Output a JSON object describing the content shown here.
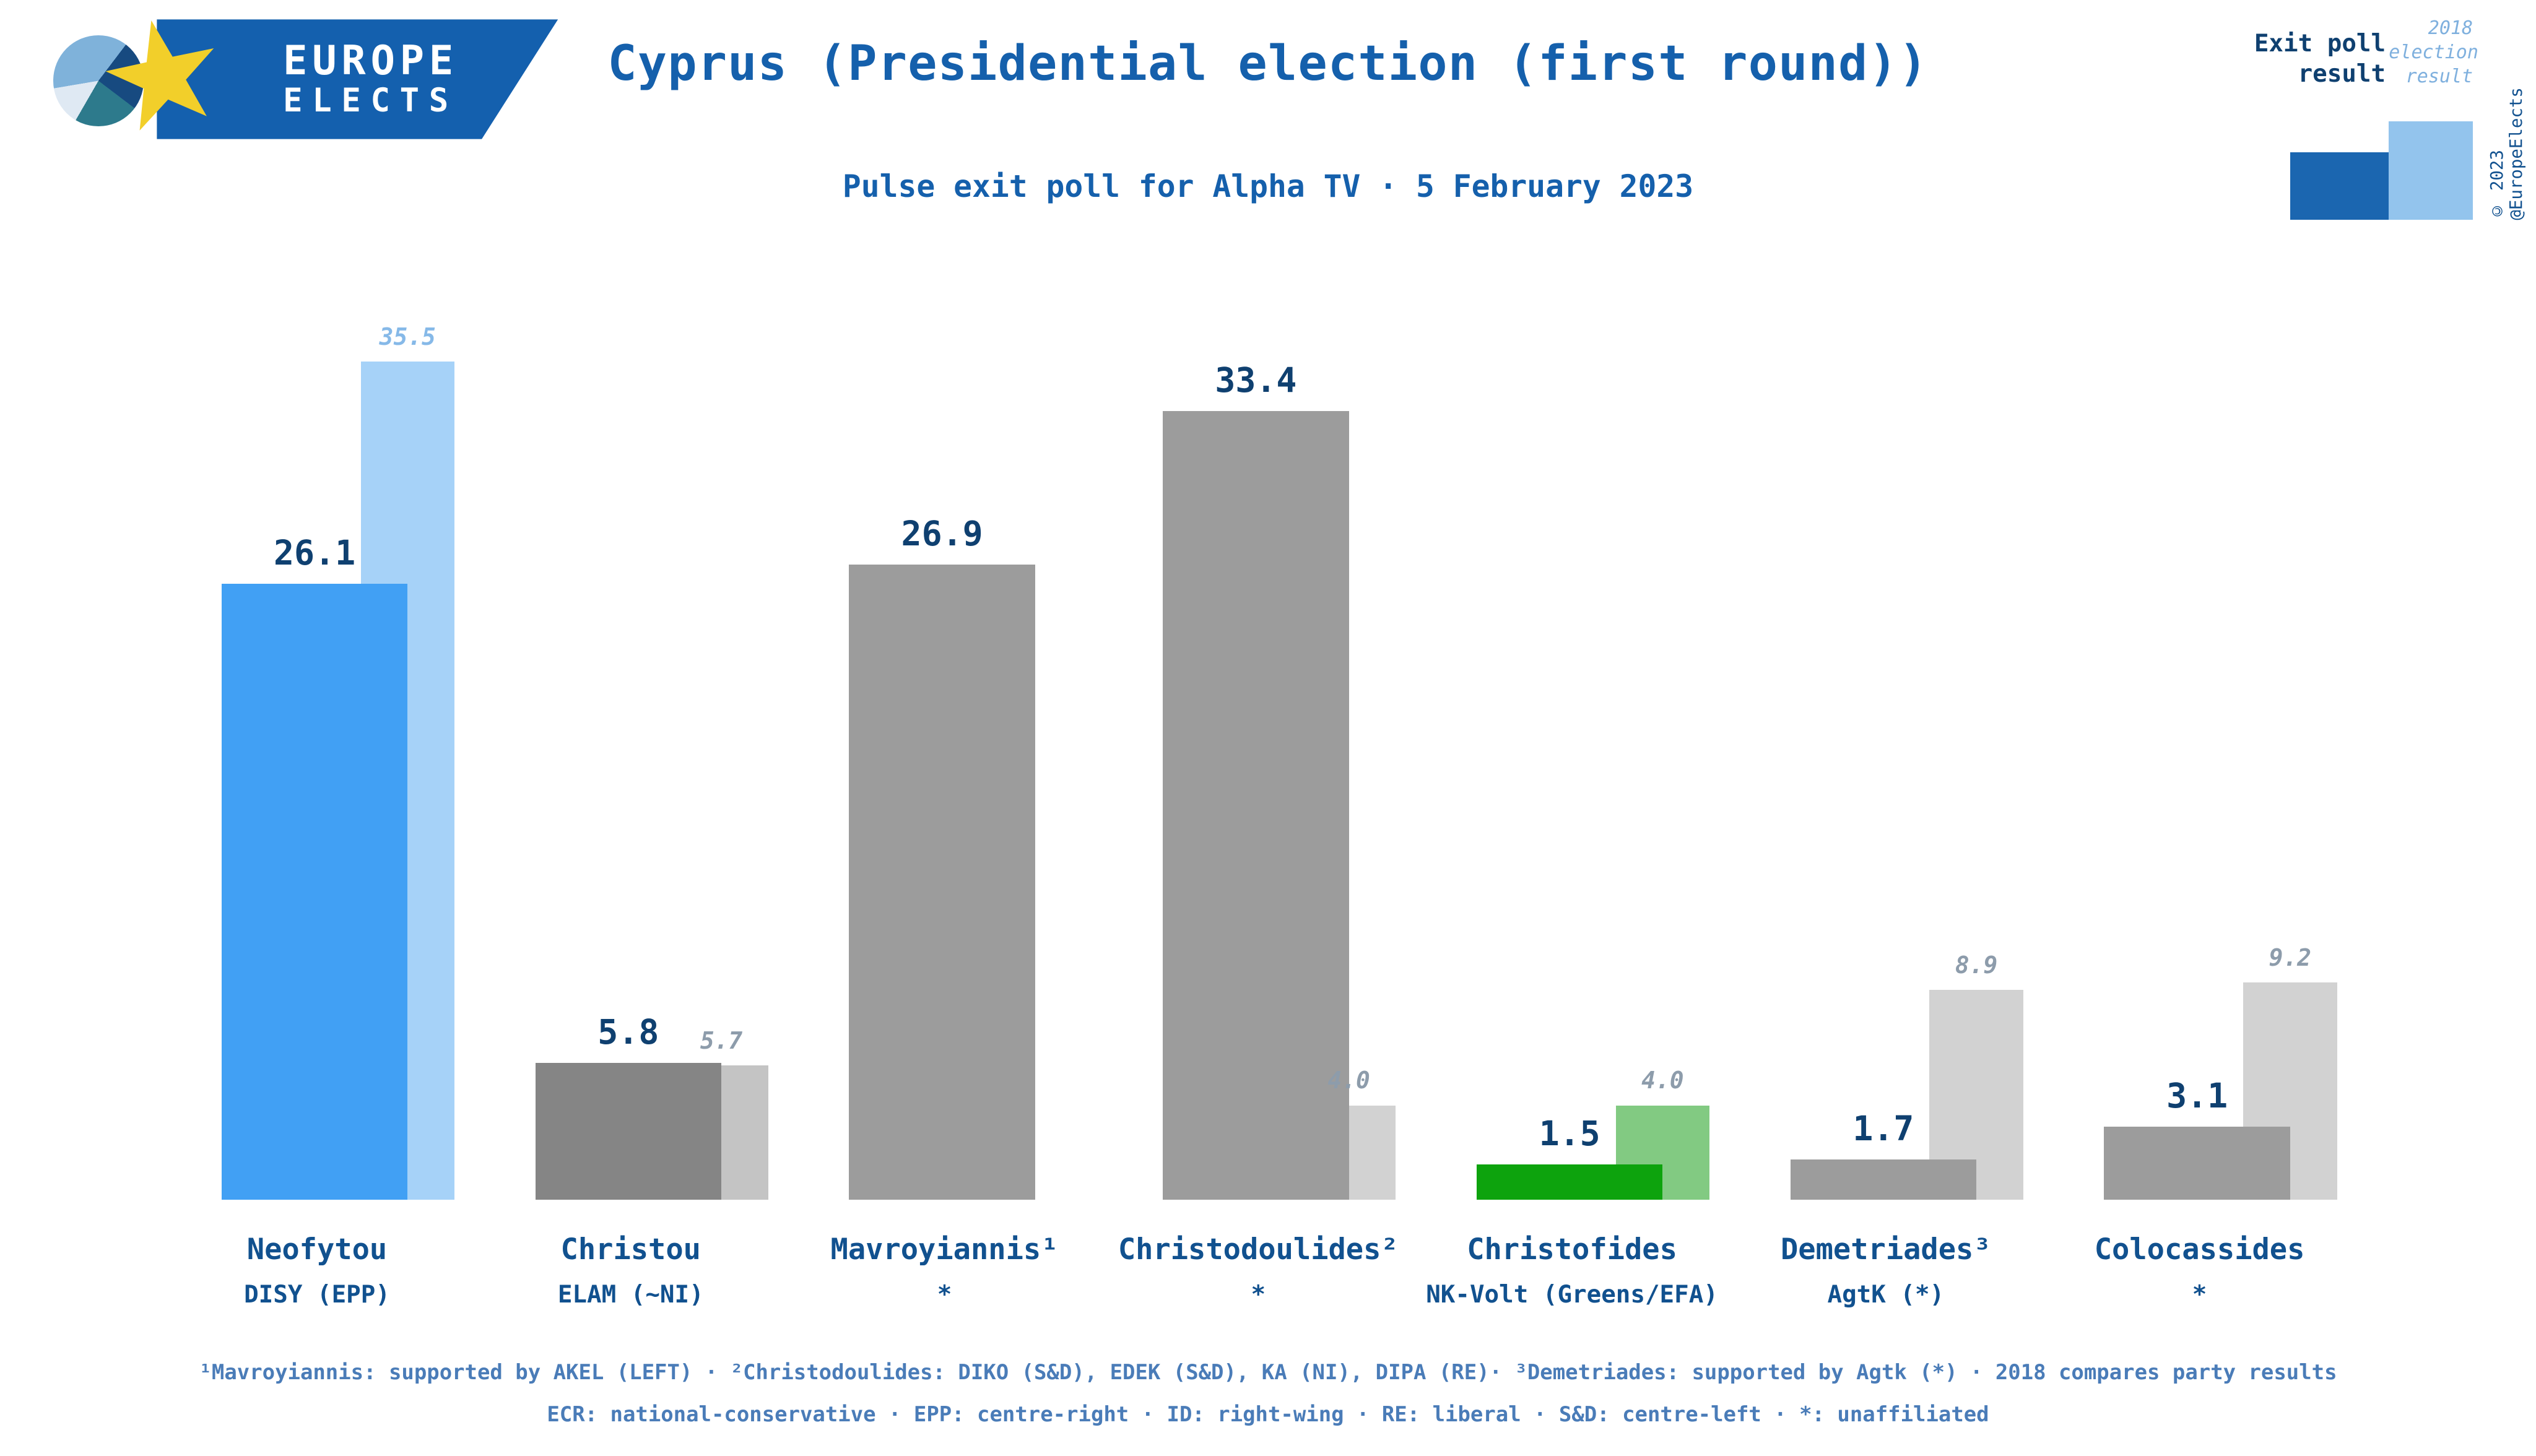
{
  "logo": {
    "line1": "EUROPE",
    "line2": "ELECTS"
  },
  "header": {
    "title": "Cyprus (Presidential election (first round))",
    "subtitle": "Pulse exit poll for Alpha TV · 5 February 2023"
  },
  "legend": {
    "exit_label": "Exit poll result",
    "prev_label": "2018 election result",
    "copyright": "© 2023 @EuropeElects",
    "exit_swatch_color": "#1b66b0",
    "prev_swatch_color": "#93c4ed"
  },
  "footnotes": [
    "¹Mavroyiannis: supported by AKEL (LEFT) · ²Christodoulides: DIKO (S&D), EDEK (S&D), KA (NI), DIPA (RE)· ³Demetriades: supported by Agtk (*) · 2018 compares party results",
    "ECR: national-conservative · EPP: centre-right · ID: right-wing · RE: liberal · S&D: centre-left · *: unaffiliated"
  ],
  "chart_data": {
    "type": "bar",
    "title": "Cyprus (Presidential election (first round))",
    "subtitle": "Pulse exit poll for Alpha TV · 5 February 2023",
    "unit": "%",
    "grid": false,
    "legend_position": "top-right",
    "ylim": [
      0,
      38
    ],
    "categories": [
      "Neofytou",
      "Christou",
      "Mavroyiannis¹",
      "Christodoulides²",
      "Christofides",
      "Demetriades³",
      "Colocassides"
    ],
    "series": [
      {
        "name": "Exit poll result",
        "values": [
          26.1,
          5.8,
          26.9,
          33.4,
          1.5,
          1.7,
          3.1
        ]
      },
      {
        "name": "2018 election result",
        "values": [
          35.5,
          5.7,
          null,
          4.0,
          4.0,
          8.9,
          9.2
        ]
      }
    ],
    "value_label_color": "#0f4070",
    "candidates": [
      {
        "name": "Neofytou",
        "party": "DISY (EPP)",
        "exit": 26.1,
        "prev": 35.5,
        "exit_color": "#41a0f4",
        "prev_color": "#a6d2f8",
        "prev_label_color": "#86b9e8"
      },
      {
        "name": "Christou",
        "party": "ELAM (~NI)",
        "exit": 5.8,
        "prev": 5.7,
        "exit_color": "#858585",
        "prev_color": "#c4c4c4",
        "prev_label_color": "#8d9cab"
      },
      {
        "name": "Mavroyiannis¹",
        "party": "*",
        "exit": 26.9,
        "prev": null,
        "exit_color": "#9c9c9c",
        "prev_color": null,
        "prev_label_color": "#8d9cab"
      },
      {
        "name": "Christodoulides²",
        "party": "*",
        "exit": 33.4,
        "prev": 4.0,
        "exit_color": "#9c9c9c",
        "prev_color": "#d2d2d2",
        "prev_label_color": "#8d9cab"
      },
      {
        "name": "Christofides",
        "party": "NK-Volt (Greens/EFA)",
        "exit": 1.5,
        "prev": 4.0,
        "exit_color": "#0da30d",
        "prev_color": "#82ca82",
        "prev_label_color": "#8d9cab"
      },
      {
        "name": "Demetriades³",
        "party": "AgtK (*)",
        "exit": 1.7,
        "prev": 8.9,
        "exit_color": "#9c9c9c",
        "prev_color": "#d2d2d2",
        "prev_label_color": "#8d9cab"
      },
      {
        "name": "Colocassides",
        "party": "*",
        "exit": 3.1,
        "prev": 9.2,
        "exit_color": "#9c9c9c",
        "prev_color": "#d2d2d2",
        "prev_label_color": "#8d9cab"
      }
    ]
  }
}
